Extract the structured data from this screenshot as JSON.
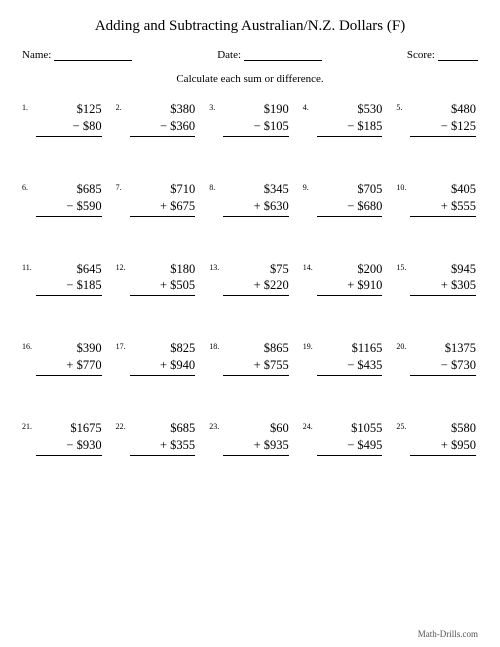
{
  "title": "Adding and Subtracting Australian/N.Z. Dollars (F)",
  "header": {
    "name_label": "Name:",
    "date_label": "Date:",
    "score_label": "Score:"
  },
  "instruction": "Calculate each sum or difference.",
  "footer": "Math-Drills.com",
  "style": {
    "font_family": "Times New Roman",
    "title_fontsize": 15,
    "body_fontsize": 12.5,
    "small_fontsize": 8,
    "background_color": "#ffffff",
    "text_color": "#000000",
    "underline_color": "#000000",
    "grid_cols": 5,
    "grid_rows": 5
  },
  "problems": [
    {
      "n": "1.",
      "top": "$125",
      "op": "−",
      "bot": "$80"
    },
    {
      "n": "2.",
      "top": "$380",
      "op": "−",
      "bot": "$360"
    },
    {
      "n": "3.",
      "top": "$190",
      "op": "−",
      "bot": "$105"
    },
    {
      "n": "4.",
      "top": "$530",
      "op": "−",
      "bot": "$185"
    },
    {
      "n": "5.",
      "top": "$480",
      "op": "−",
      "bot": "$125"
    },
    {
      "n": "6.",
      "top": "$685",
      "op": "−",
      "bot": "$590"
    },
    {
      "n": "7.",
      "top": "$710",
      "op": "+",
      "bot": "$675"
    },
    {
      "n": "8.",
      "top": "$345",
      "op": "+",
      "bot": "$630"
    },
    {
      "n": "9.",
      "top": "$705",
      "op": "−",
      "bot": "$680"
    },
    {
      "n": "10.",
      "top": "$405",
      "op": "+",
      "bot": "$555"
    },
    {
      "n": "11.",
      "top": "$645",
      "op": "−",
      "bot": "$185"
    },
    {
      "n": "12.",
      "top": "$180",
      "op": "+",
      "bot": "$505"
    },
    {
      "n": "13.",
      "top": "$75",
      "op": "+",
      "bot": "$220"
    },
    {
      "n": "14.",
      "top": "$200",
      "op": "+",
      "bot": "$910"
    },
    {
      "n": "15.",
      "top": "$945",
      "op": "+",
      "bot": "$305"
    },
    {
      "n": "16.",
      "top": "$390",
      "op": "+",
      "bot": "$770"
    },
    {
      "n": "17.",
      "top": "$825",
      "op": "+",
      "bot": "$940"
    },
    {
      "n": "18.",
      "top": "$865",
      "op": "+",
      "bot": "$755"
    },
    {
      "n": "19.",
      "top": "$1165",
      "op": "−",
      "bot": "$435"
    },
    {
      "n": "20.",
      "top": "$1375",
      "op": "−",
      "bot": "$730"
    },
    {
      "n": "21.",
      "top": "$1675",
      "op": "−",
      "bot": "$930"
    },
    {
      "n": "22.",
      "top": "$685",
      "op": "+",
      "bot": "$355"
    },
    {
      "n": "23.",
      "top": "$60",
      "op": "+",
      "bot": "$935"
    },
    {
      "n": "24.",
      "top": "$1055",
      "op": "−",
      "bot": "$495"
    },
    {
      "n": "25.",
      "top": "$580",
      "op": "+",
      "bot": "$950"
    }
  ]
}
